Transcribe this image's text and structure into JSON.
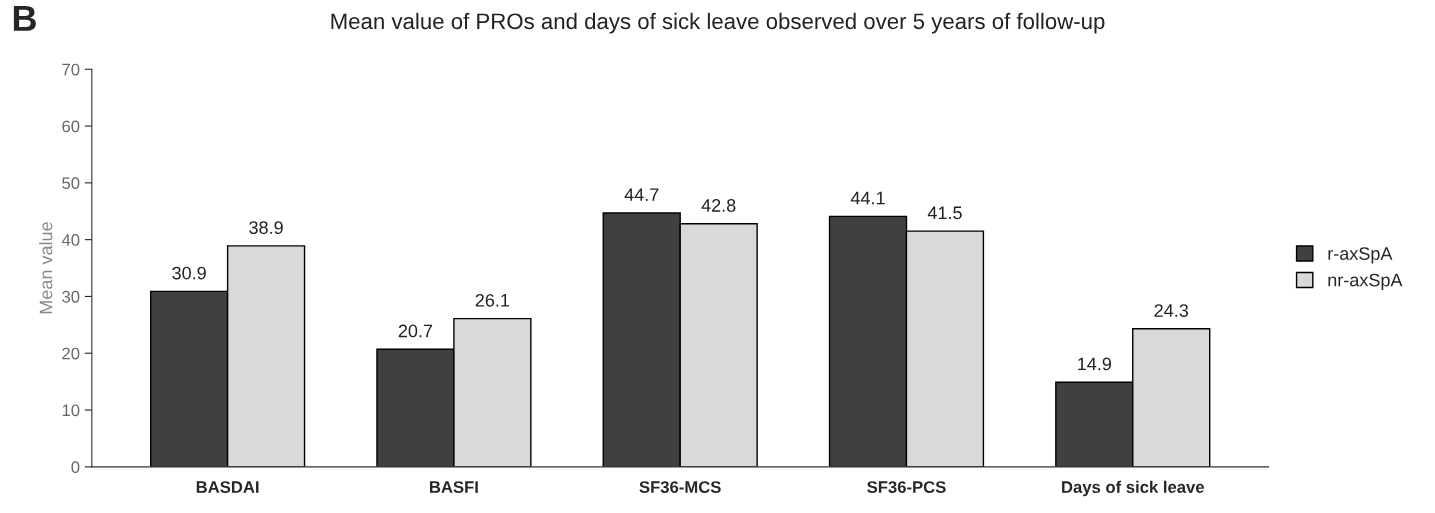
{
  "chart_data": {
    "type": "bar",
    "title": "Mean value of PROs and days of sick leave observed over 5 years of follow-up",
    "ylabel": "Mean value",
    "annotations": [
      "B"
    ],
    "categories": [
      "BASDAI",
      "BASFI",
      "SF36-MCS",
      "SF36-PCS",
      "Days of sick leave"
    ],
    "series": [
      {
        "name": "r-axSpA",
        "color": "#404040",
        "values": [
          30.9,
          20.7,
          44.7,
          44.1,
          14.9
        ]
      },
      {
        "name": "nr-axSpA",
        "color": "#d9d9d9",
        "values": [
          38.9,
          26.1,
          42.8,
          41.5,
          24.3
        ]
      }
    ],
    "ylim": [
      0,
      70
    ],
    "yticks": [
      0,
      10,
      20,
      30,
      40,
      50,
      60,
      70
    ],
    "grid": false,
    "legend": "right",
    "data_labels": true
  }
}
